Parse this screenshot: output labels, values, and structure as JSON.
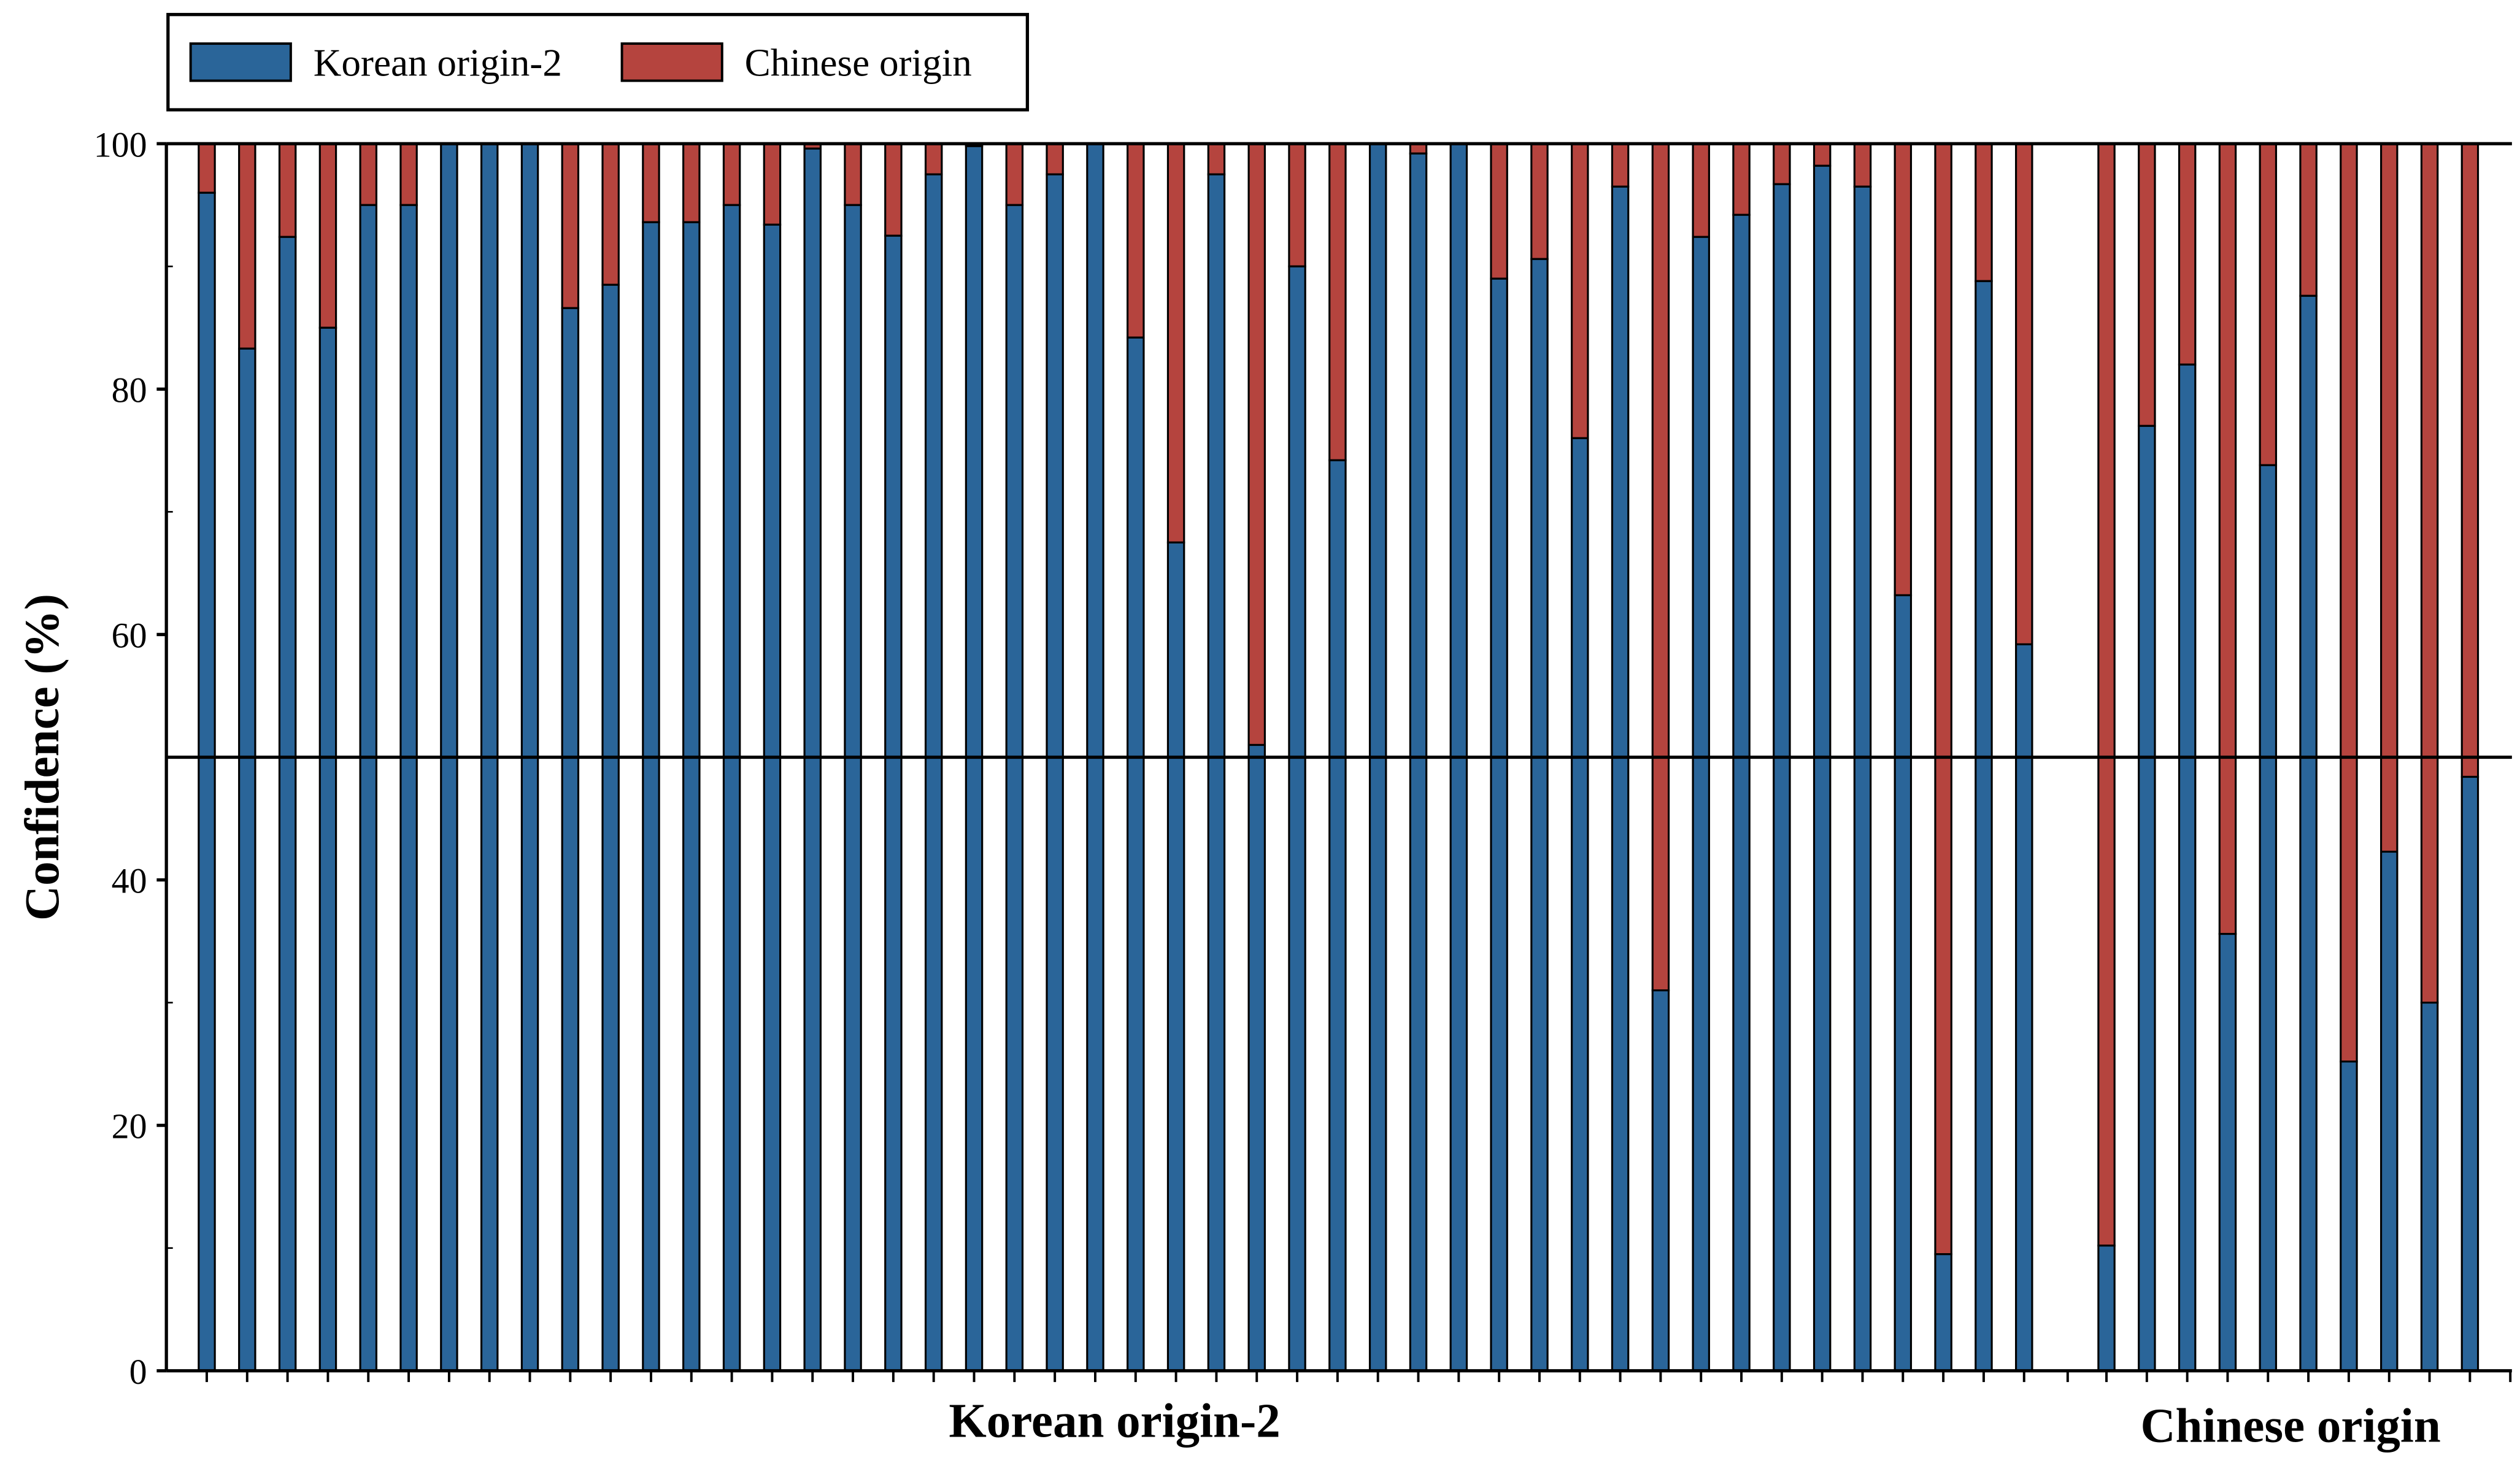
{
  "chart_data": {
    "type": "bar",
    "stacked": true,
    "ylabel": "Confidence (%)",
    "ylim": [
      0,
      100
    ],
    "yticks": [
      0,
      20,
      40,
      60,
      80,
      100
    ],
    "reference_line": 50,
    "legend": {
      "placement": "top-left",
      "entries": [
        {
          "name": "Korean origin-2",
          "color": "#2a6599"
        },
        {
          "name": "Chinese origin",
          "color": "#b5443e"
        }
      ]
    },
    "groups": [
      {
        "label": "Korean origin-2",
        "korean_origin_2": [
          96,
          83.3,
          92.4,
          85,
          95,
          95,
          100,
          100,
          100,
          86.6,
          88.5,
          93.6,
          93.6,
          95,
          93.4,
          99.6,
          95,
          92.5,
          97.5,
          99.8,
          95,
          97.5,
          100,
          84.2,
          67.5,
          97.5,
          51,
          90,
          74.2,
          100,
          99.2,
          100,
          89,
          90.6,
          76,
          96.5,
          31,
          92.4,
          94.2,
          96.7,
          98.2,
          96.5,
          63.2,
          9.5,
          88.8,
          59.2
        ]
      },
      {
        "label": "Chinese origin",
        "korean_origin_2": [
          10.2,
          77,
          82,
          35.6,
          73.8,
          87.6,
          25.2,
          42.3,
          30,
          48.4
        ]
      }
    ],
    "grid": false
  }
}
